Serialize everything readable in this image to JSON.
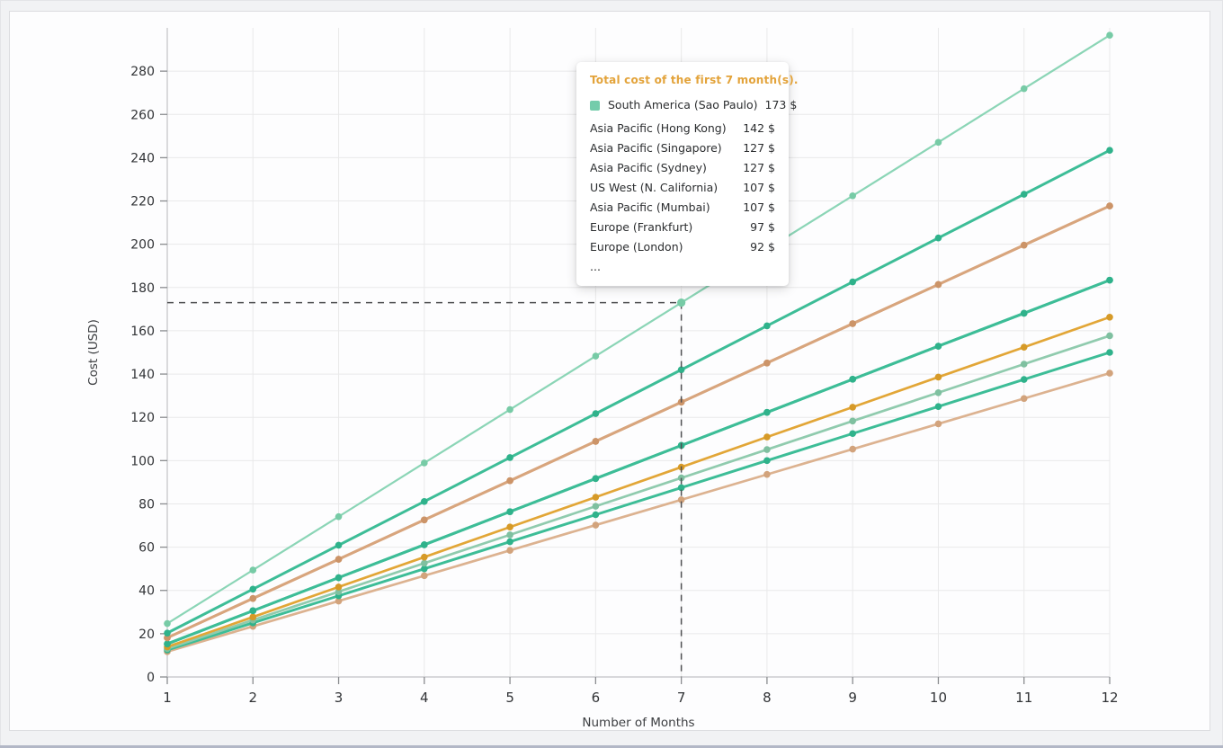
{
  "page": {
    "background": "#f1f2f4",
    "card_background": "#fdfdfe",
    "card_border": "#dcdde0",
    "bottom_edge_color": "#b2b7c6"
  },
  "chart_data": {
    "type": "line",
    "title": "",
    "xlabel": "Number of Months",
    "ylabel": "Cost (USD)",
    "x": [
      1,
      2,
      3,
      4,
      5,
      6,
      7,
      8,
      9,
      10,
      11,
      12
    ],
    "xlim": [
      1,
      12
    ],
    "ylim": [
      0,
      300
    ],
    "yticks": [
      0,
      20,
      40,
      60,
      80,
      100,
      120,
      140,
      160,
      180,
      200,
      220,
      240,
      260,
      280
    ],
    "grid": true,
    "grid_color": "#e9e9ea",
    "axis_color": "#c2c3c6",
    "tick_color": "#8a8c8f",
    "label_color": "#313336",
    "series": [
      {
        "name": "South America (Sao Paulo)",
        "color": "#8bd5b6",
        "dot_color": "#77cba6",
        "width": 2.2,
        "values": [
          24.7,
          49.4,
          74.1,
          98.9,
          123.6,
          148.3,
          173.0,
          197.7,
          222.4,
          247.1,
          271.9,
          296.6
        ]
      },
      {
        "name": "Asia Pacific (Hong Kong)",
        "color": "#3dbd97",
        "dot_color": "#2fb28b",
        "width": 3,
        "values": [
          20.3,
          40.6,
          60.9,
          81.1,
          101.4,
          121.7,
          142.0,
          162.3,
          182.6,
          202.9,
          223.1,
          243.4
        ]
      },
      {
        "name": "Asia Pacific (Singapore)",
        "color": "#d8a57d",
        "dot_color": "#cc9468",
        "width": 3,
        "values": [
          18.1,
          36.3,
          54.4,
          72.6,
          90.7,
          108.9,
          127.0,
          145.1,
          163.3,
          181.4,
          199.6,
          217.7
        ]
      },
      {
        "name": "Asia Pacific (Sydney)",
        "color": "#d8a57d",
        "dot_color": "#cc9468",
        "width": 3,
        "values": [
          18.1,
          36.3,
          54.4,
          72.6,
          90.7,
          108.9,
          127.0,
          145.1,
          163.3,
          181.4,
          199.6,
          217.7
        ]
      },
      {
        "name": "US West (N. California)",
        "color": "#3dbd97",
        "dot_color": "#2fb28b",
        "width": 3,
        "values": [
          15.3,
          30.6,
          45.9,
          61.1,
          76.4,
          91.7,
          107.0,
          122.3,
          137.6,
          152.9,
          168.1,
          183.4
        ]
      },
      {
        "name": "Asia Pacific (Mumbai)",
        "color": "#3dbd97",
        "dot_color": "#2fb28b",
        "width": 3,
        "values": [
          15.3,
          30.6,
          45.9,
          61.1,
          76.4,
          91.7,
          107.0,
          122.3,
          137.6,
          152.9,
          168.1,
          183.4
        ]
      },
      {
        "name": "Europe (Frankfurt)",
        "color": "#e2a637",
        "dot_color": "#d69a28",
        "width": 2.7,
        "values": [
          13.9,
          27.7,
          41.6,
          55.4,
          69.3,
          83.1,
          97.0,
          110.9,
          124.7,
          138.6,
          152.4,
          166.3
        ]
      },
      {
        "name": "Europe (London)",
        "color": "#90cbae",
        "dot_color": "#7fc0a0",
        "width": 2.7,
        "values": [
          13.1,
          26.3,
          39.4,
          52.6,
          65.7,
          78.9,
          92.0,
          105.1,
          118.3,
          131.4,
          144.6,
          157.7
        ]
      },
      {
        "name": "",
        "color": "#3dbd97",
        "dot_color": "#2fb28b",
        "width": 3,
        "values": [
          12.5,
          25.0,
          37.5,
          50.0,
          62.5,
          75.0,
          87.5,
          100.0,
          112.5,
          125.0,
          137.5,
          150.0
        ]
      },
      {
        "name": "",
        "color": "#dcb290",
        "dot_color": "#d2a37c",
        "width": 2.7,
        "values": [
          11.7,
          23.4,
          35.1,
          46.8,
          58.5,
          70.2,
          81.9,
          93.6,
          105.3,
          117.0,
          128.7,
          140.4
        ]
      }
    ],
    "crosshair": {
      "month": 7,
      "value": 173,
      "color": "#4f5052",
      "dash": "7 6"
    }
  },
  "tooltip": {
    "title": "Total cost of the first 7 month(s).",
    "title_color": "#e3a33a",
    "rows": [
      {
        "label": "South America (Sao Paulo)",
        "value": "173 $",
        "marker_color": "#74ccab",
        "highlighted": true
      },
      {
        "label": "Asia Pacific (Hong Kong)",
        "value": "142 $"
      },
      {
        "label": "Asia Pacific (Singapore)",
        "value": "127 $"
      },
      {
        "label": "Asia Pacific (Sydney)",
        "value": "127 $"
      },
      {
        "label": "US West (N. California)",
        "value": "107 $"
      },
      {
        "label": "Asia Pacific (Mumbai)",
        "value": "107 $"
      },
      {
        "label": "Europe (Frankfurt)",
        "value": "97 $"
      },
      {
        "label": "Europe (London)",
        "value": "92 $"
      },
      {
        "label": "...",
        "value": ""
      }
    ]
  }
}
